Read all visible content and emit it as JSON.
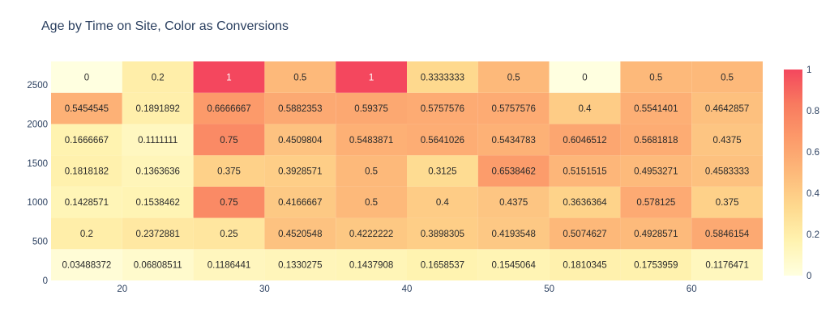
{
  "chart_data": {
    "type": "heatmap",
    "title": "Age by Time on Site, Color as Conversions",
    "xlabel": "",
    "ylabel": "",
    "x_ticks": [
      "20",
      "30",
      "40",
      "50",
      "60"
    ],
    "x_tick_values": [
      20,
      30,
      40,
      50,
      60
    ],
    "y_ticks": [
      "0",
      "500",
      "1000",
      "1500",
      "2000",
      "2500"
    ],
    "y_tick_values": [
      0,
      500,
      1000,
      1500,
      2000,
      2500
    ],
    "x_range": [
      15,
      65
    ],
    "y_range": [
      0,
      2800
    ],
    "x_bin_start": 15,
    "x_bin_size": 5,
    "y_bin_start": 0,
    "y_bin_size": 400,
    "colorscale": [
      "#ffffe0",
      "#fff3b0",
      "#fed98e",
      "#fdb97a",
      "#fc9a6a",
      "#f87a5f",
      "#f4475e"
    ],
    "colorbar_ticks": [
      "0",
      "0.2",
      "0.4",
      "0.6",
      "0.8",
      "1"
    ],
    "colorbar_tick_values": [
      0,
      0.2,
      0.4,
      0.6,
      0.8,
      1
    ],
    "z": [
      [
        "0.03488372",
        "0.06808511",
        "0.1186441",
        "0.1330275",
        "0.1437908",
        "0.1658537",
        "0.1545064",
        "0.1810345",
        "0.1753959",
        "0.1176471"
      ],
      [
        "0.2",
        "0.2372881",
        "0.25",
        "0.4520548",
        "0.4222222",
        "0.3898305",
        "0.4193548",
        "0.5074627",
        "0.4928571",
        "0.5846154"
      ],
      [
        "0.1428571",
        "0.1538462",
        "0.75",
        "0.4166667",
        "0.5",
        "0.4",
        "0.4375",
        "0.3636364",
        "0.578125",
        "0.375"
      ],
      [
        "0.1818182",
        "0.1363636",
        "0.375",
        "0.3928571",
        "0.5",
        "0.3125",
        "0.6538462",
        "0.5151515",
        "0.4953271",
        "0.4583333"
      ],
      [
        "0.1666667",
        "0.1111111",
        "0.75",
        "0.4509804",
        "0.5483871",
        "0.5641026",
        "0.5434783",
        "0.6046512",
        "0.5681818",
        "0.4375"
      ],
      [
        "0.5454545",
        "0.1891892",
        "0.6666667",
        "0.5882353",
        "0.59375",
        "0.5757576",
        "0.5757576",
        "0.4",
        "0.5541401",
        "0.4642857"
      ],
      [
        "0",
        "0.2",
        "1",
        "0.5",
        "1",
        "0.3333333",
        "0.5",
        "0",
        "0.5",
        "0.5"
      ]
    ]
  }
}
